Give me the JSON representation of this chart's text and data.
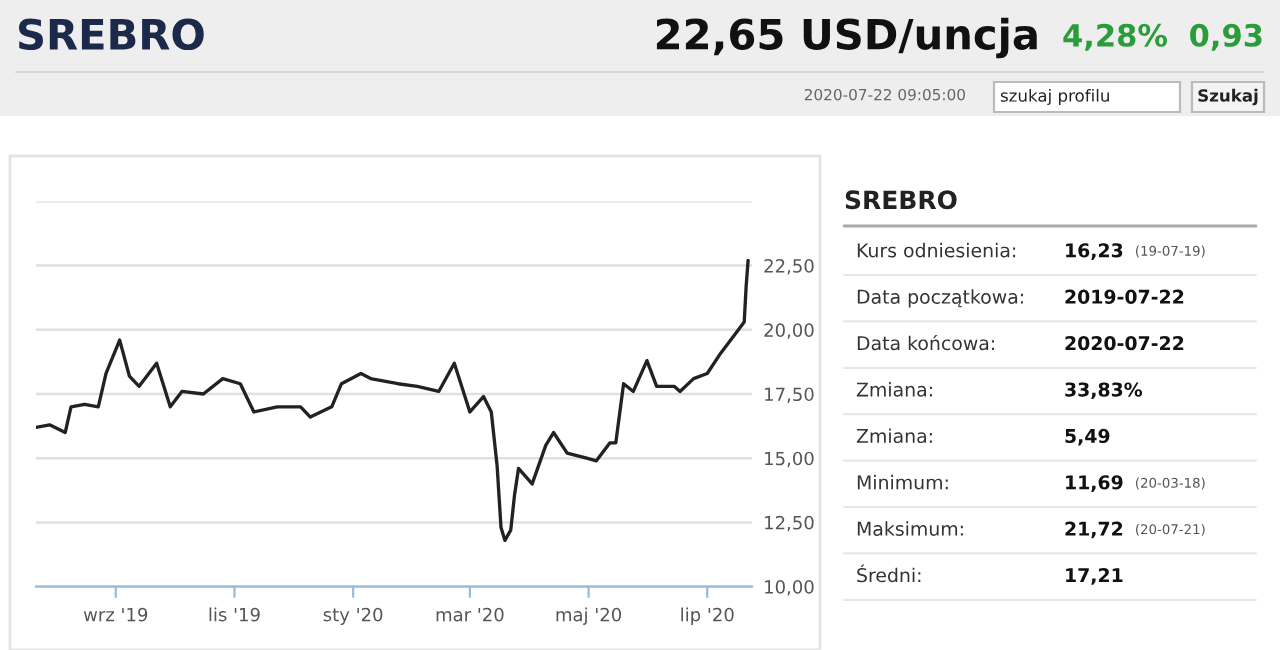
{
  "chart_data": [
    {
      "type": "other",
      "title": "SREBRO",
      "annotations": [
        "22,65 USD/uncja",
        "4,28%",
        "0,93",
        "2020-07-22 09:05:00",
        "szukaj profilu",
        "Szukaj"
      ]
    },
    {
      "type": "line",
      "xlim": [
        "2019-07-22",
        "2020-07-24"
      ],
      "ylim": [
        10,
        25
      ],
      "xticks": [
        {
          "value": "2019-09-01",
          "label": "wrz '19"
        },
        {
          "value": "2019-11-01",
          "label": "lis '19"
        },
        {
          "value": "2020-01-01",
          "label": "sty '20"
        },
        {
          "value": "2020-03-01",
          "label": "mar '20"
        },
        {
          "value": "2020-05-01",
          "label": "maj '20"
        },
        {
          "value": "2020-07-01",
          "label": "lip '20"
        }
      ],
      "yticks": [
        {
          "value": 10,
          "label": "10,00"
        },
        {
          "value": 12.5,
          "label": "12,50"
        },
        {
          "value": 15,
          "label": "15,00"
        },
        {
          "value": 17.5,
          "label": "17,50"
        },
        {
          "value": 20,
          "label": "20,00"
        },
        {
          "value": 22.5,
          "label": "22,50"
        },
        {
          "value": 25,
          "label": null
        }
      ],
      "grid": "y",
      "legend": false,
      "series": [
        {
          "color": "#222222",
          "x": [
            "2019-07-22",
            "2019-07-29",
            "2019-08-06",
            "2019-08-09",
            "2019-08-16",
            "2019-08-23",
            "2019-08-27",
            "2019-09-03",
            "2019-09-08",
            "2019-09-13",
            "2019-09-22",
            "2019-09-29",
            "2019-10-05",
            "2019-10-16",
            "2019-10-26",
            "2019-11-04",
            "2019-11-11",
            "2019-11-23",
            "2019-12-05",
            "2019-12-10",
            "2019-12-21",
            "2019-12-26",
            "2020-01-05",
            "2020-01-10",
            "2020-01-24",
            "2020-02-03",
            "2020-02-14",
            "2020-02-22",
            "2020-03-01",
            "2020-03-08",
            "2020-03-12",
            "2020-03-15",
            "2020-03-17",
            "2020-03-19",
            "2020-03-22",
            "2020-03-24",
            "2020-03-26",
            "2020-04-02",
            "2020-04-09",
            "2020-04-13",
            "2020-04-20",
            "2020-04-30",
            "2020-05-05",
            "2020-05-12",
            "2020-05-15",
            "2020-05-19",
            "2020-05-24",
            "2020-05-31",
            "2020-06-05",
            "2020-06-14",
            "2020-06-17",
            "2020-06-24",
            "2020-07-01",
            "2020-07-08",
            "2020-07-15",
            "2020-07-20",
            "2020-07-21",
            "2020-07-22"
          ],
          "values": [
            16.2,
            16.3,
            16.0,
            17.0,
            17.1,
            17.0,
            18.3,
            19.6,
            18.2,
            17.8,
            18.7,
            17.0,
            17.6,
            17.5,
            18.1,
            17.9,
            16.8,
            17.0,
            17.0,
            16.6,
            17.0,
            17.9,
            18.3,
            18.1,
            17.9,
            17.8,
            17.6,
            18.7,
            16.8,
            17.4,
            16.8,
            14.7,
            12.3,
            11.8,
            12.2,
            13.6,
            14.6,
            14.0,
            15.5,
            16.0,
            15.2,
            15.0,
            14.9,
            15.6,
            15.6,
            17.9,
            17.6,
            18.8,
            17.8,
            17.8,
            17.6,
            18.1,
            18.3,
            19.1,
            19.8,
            20.3,
            21.7,
            22.7
          ]
        }
      ]
    },
    {
      "type": "other",
      "title": "SREBRO",
      "annotations": [
        "Kurs odniesienia: 16,23 (19-07-19)",
        "Data początkowa: 2019-07-22",
        "Data końcowa: 2020-07-22",
        "Zmiana: 33,83%",
        "Zmiana: 5,49",
        "Minimum: 11,69 (20-03-18)",
        "Maksimum: 21,72 (20-07-21)",
        "Średni: 17,21"
      ]
    }
  ]
}
